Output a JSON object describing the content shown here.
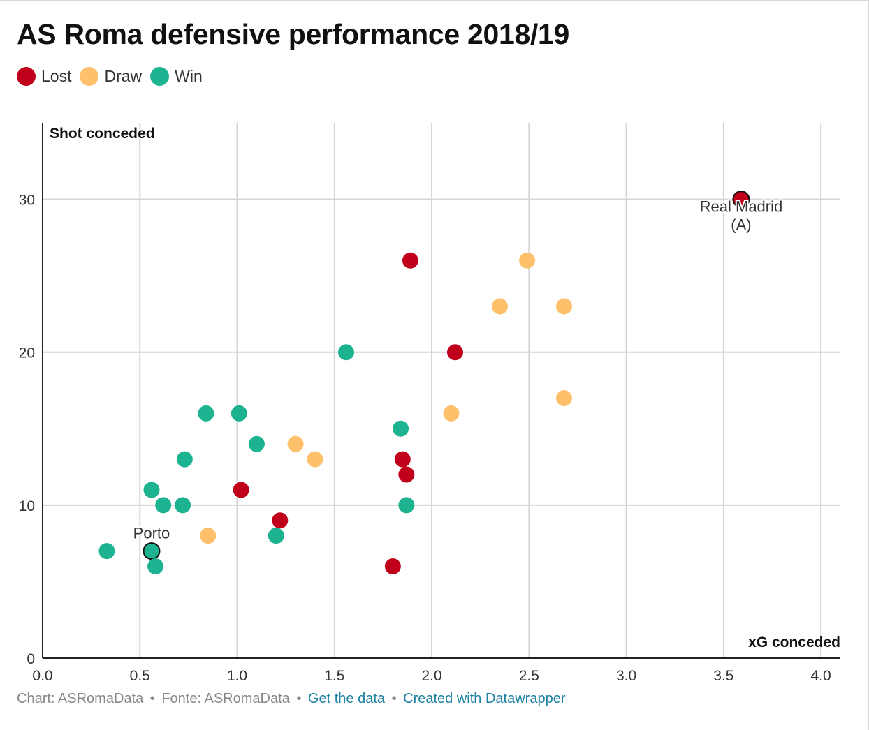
{
  "title": "AS Roma defensive performance 2018/19",
  "legend": [
    {
      "label": "Lost",
      "color": "#c0001a"
    },
    {
      "label": "Draw",
      "color": "#fec06a"
    },
    {
      "label": "Win",
      "color": "#1db290"
    }
  ],
  "footer": {
    "chart_credit": "Chart: ASRomaData",
    "source": "Fonte: ASRomaData",
    "sep": "•",
    "get_data": "Get the data",
    "created_with": "Created with Datawrapper"
  },
  "chart_data": {
    "type": "scatter",
    "title": "AS Roma defensive performance 2018/19",
    "xlabel": "xG conceded",
    "ylabel": "Shot conceded",
    "xlim": [
      0,
      4.1
    ],
    "ylim": [
      0,
      35
    ],
    "x_ticks": [
      "0.0",
      "0.5",
      "1.0",
      "1.5",
      "2.0",
      "2.5",
      "3.0",
      "3.5",
      "4.0"
    ],
    "y_ticks": [
      "0",
      "10",
      "20",
      "30"
    ],
    "grid": true,
    "legend_position": "top-left",
    "series": [
      {
        "name": "Lost",
        "color": "#c0001a",
        "points": [
          {
            "x": 3.59,
            "y": 30
          },
          {
            "x": 1.89,
            "y": 26
          },
          {
            "x": 2.12,
            "y": 20
          },
          {
            "x": 1.85,
            "y": 13
          },
          {
            "x": 1.87,
            "y": 12
          },
          {
            "x": 1.02,
            "y": 11
          },
          {
            "x": 1.22,
            "y": 9
          },
          {
            "x": 1.8,
            "y": 6
          }
        ]
      },
      {
        "name": "Draw",
        "color": "#fec06a",
        "points": [
          {
            "x": 2.49,
            "y": 26
          },
          {
            "x": 2.35,
            "y": 23
          },
          {
            "x": 2.68,
            "y": 23
          },
          {
            "x": 2.68,
            "y": 17
          },
          {
            "x": 2.1,
            "y": 16
          },
          {
            "x": 1.3,
            "y": 14
          },
          {
            "x": 1.4,
            "y": 13
          },
          {
            "x": 0.85,
            "y": 8
          }
        ]
      },
      {
        "name": "Win",
        "color": "#1db290",
        "points": [
          {
            "x": 1.56,
            "y": 20
          },
          {
            "x": 0.84,
            "y": 16
          },
          {
            "x": 1.01,
            "y": 16
          },
          {
            "x": 1.84,
            "y": 15
          },
          {
            "x": 1.1,
            "y": 14
          },
          {
            "x": 0.73,
            "y": 13
          },
          {
            "x": 0.56,
            "y": 11
          },
          {
            "x": 0.62,
            "y": 10
          },
          {
            "x": 0.72,
            "y": 10
          },
          {
            "x": 1.87,
            "y": 10
          },
          {
            "x": 1.2,
            "y": 8
          },
          {
            "x": 0.33,
            "y": 7
          },
          {
            "x": 0.56,
            "y": 7
          },
          {
            "x": 0.58,
            "y": 6
          }
        ]
      }
    ],
    "annotations": [
      {
        "text": "Real Madrid",
        "text2": "(A)",
        "x": 3.59,
        "y": 30,
        "series": "Lost"
      },
      {
        "text": "Porto",
        "x": 0.56,
        "y": 7,
        "series": "Win"
      }
    ]
  }
}
